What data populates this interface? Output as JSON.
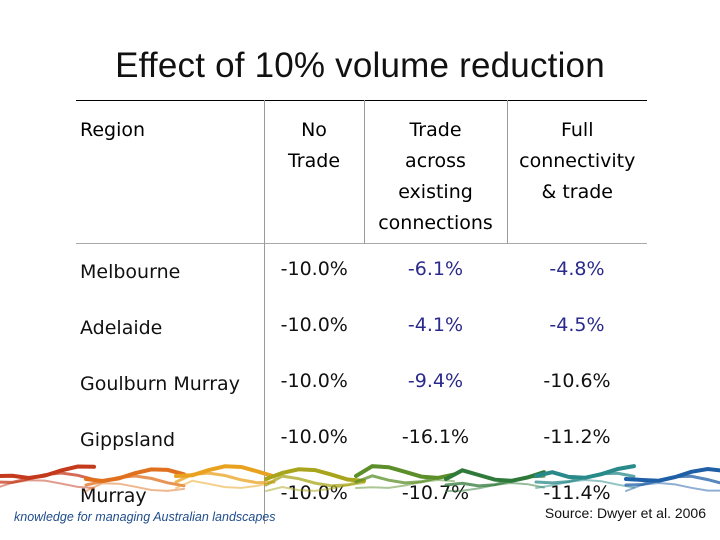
{
  "title": "Effect of 10% volume reduction",
  "table": {
    "headers": {
      "region": "Region",
      "no_trade": [
        "No",
        "Trade"
      ],
      "trade_existing": [
        "Trade",
        "across",
        "existing",
        "connections"
      ],
      "full": [
        "Full",
        "connectivity",
        "& trade"
      ]
    },
    "rows": [
      {
        "region": "Melbourne",
        "no_trade": "-10.0%",
        "trade_existing": "-6.1%",
        "full": "-4.8%"
      },
      {
        "region": "Adelaide",
        "no_trade": "-10.0%",
        "trade_existing": "-4.1%",
        "full": "-4.5%"
      },
      {
        "region": "Goulburn Murray",
        "no_trade": "-10.0%",
        "trade_existing": "-9.4%",
        "full": "-10.6%"
      },
      {
        "region": "Gippsland",
        "no_trade": "-10.0%",
        "trade_existing": "-16.1%",
        "full": "-11.2%"
      },
      {
        "region": "Murray",
        "no_trade": "-10.0%",
        "trade_existing": "-10.7%",
        "full": "-11.4%"
      }
    ]
  },
  "footer": {
    "tagline": "knowledge for managing Australian landscapes",
    "source": "Source: Dwyer et al. 2006",
    "wave_colors": [
      "#c43a1c",
      "#e0701e",
      "#e9a21f",
      "#a8a51c",
      "#5c8f2a",
      "#2f7a3a",
      "#2a8a8a",
      "#1f5fa6"
    ]
  },
  "colors": {
    "value_blue": "#2a2a8c",
    "tagline_blue": "#1f4c8c"
  }
}
